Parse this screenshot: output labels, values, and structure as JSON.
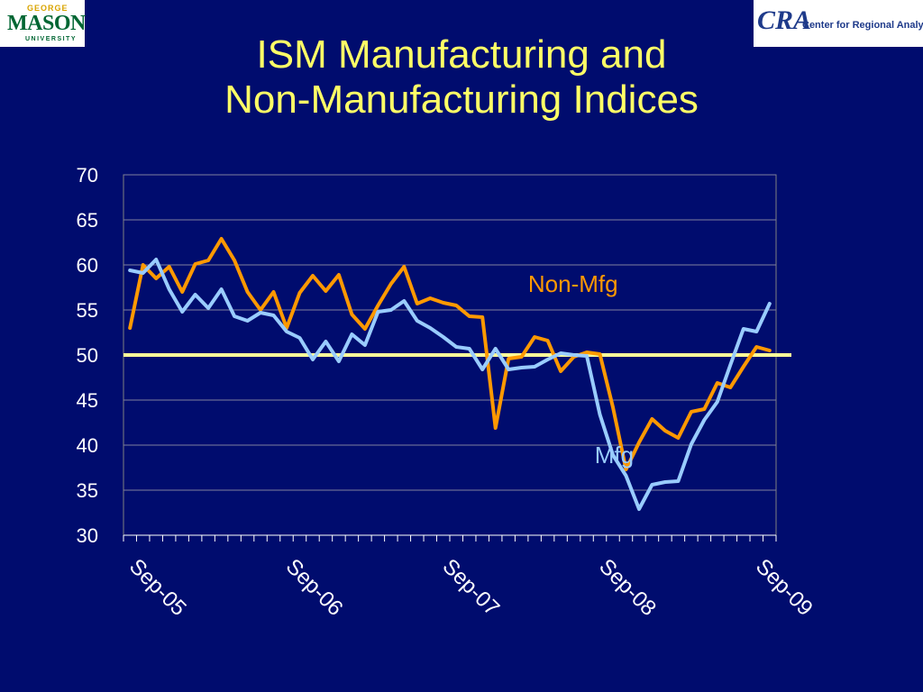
{
  "logos": {
    "left": {
      "top": "GEORGE",
      "main": "MASON",
      "bottom": "UNIVERSITY"
    },
    "right": {
      "mark": "CRA",
      "name": "Center for Regional Analysis"
    }
  },
  "chart_data": {
    "type": "line",
    "title_lines": [
      "ISM Manufacturing and",
      "Non-Manufacturing Indices"
    ],
    "ylim": [
      30,
      70
    ],
    "yticks": [
      "70",
      "65",
      "60",
      "55",
      "50",
      "45",
      "40",
      "35",
      "30"
    ],
    "xtick_labels": [
      "Sep-05",
      "Sep-06",
      "Sep-07",
      "Sep-08",
      "Sep-09"
    ],
    "xtick_positions": [
      0,
      12,
      24,
      36,
      48
    ],
    "x_count": 50,
    "grid": true,
    "reference_line": {
      "value": 50,
      "color": "#ffff99"
    },
    "series": [
      {
        "name": "Non-Mfg",
        "color": "#ff9900",
        "values": [
          53.0,
          60.0,
          58.5,
          59.8,
          57.0,
          60.1,
          60.5,
          62.9,
          60.5,
          57.0,
          55.0,
          57.0,
          53.0,
          56.9,
          58.8,
          57.1,
          58.9,
          54.5,
          52.9,
          55.5,
          57.9,
          59.8,
          55.7,
          56.3,
          55.8,
          55.5,
          54.3,
          54.2,
          41.9,
          49.6,
          49.8,
          52.0,
          51.6,
          48.2,
          49.8,
          50.3,
          50.1,
          44.2,
          37.3,
          40.3,
          42.9,
          41.6,
          40.8,
          43.7,
          44.0,
          46.9,
          46.4,
          48.7,
          50.9,
          50.5
        ],
        "label": {
          "text": "Non-Mfg",
          "x": 30.5,
          "y": 57.0
        }
      },
      {
        "name": "Mfg",
        "color": "#99ccff",
        "values": [
          59.4,
          59.1,
          60.6,
          57.3,
          54.8,
          56.7,
          55.2,
          57.3,
          54.3,
          53.8,
          54.7,
          54.4,
          52.6,
          51.9,
          49.5,
          51.5,
          49.3,
          52.3,
          51.1,
          54.8,
          55.0,
          56.0,
          53.8,
          53.0,
          52.0,
          50.9,
          50.7,
          48.4,
          50.7,
          48.4,
          48.6,
          48.7,
          49.5,
          50.2,
          50.0,
          49.9,
          43.4,
          38.9,
          36.6,
          32.9,
          35.6,
          35.9,
          36.0,
          40.1,
          42.8,
          44.8,
          48.9,
          52.9,
          52.6,
          55.7
        ],
        "label": {
          "text": "Mfg",
          "x": 35.6,
          "y": 38.0
        }
      }
    ]
  }
}
